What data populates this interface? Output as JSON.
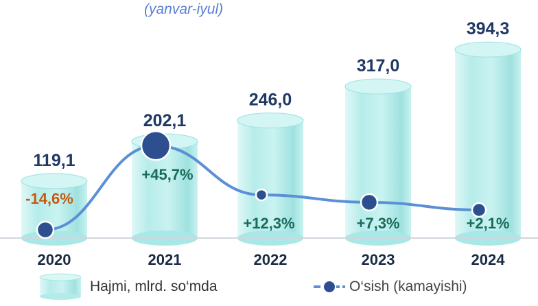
{
  "subtitle": "(yanvar-iyul)",
  "chart_data": {
    "type": "bar",
    "categories": [
      "2020",
      "2021",
      "2022",
      "2023",
      "2024"
    ],
    "series": [
      {
        "name": "Hajmi, mlrd. so‘mda",
        "values": [
          119.1,
          202.1,
          246.0,
          317.0,
          394.3
        ],
        "labels": [
          "119,1",
          "202,1",
          "246,0",
          "317,0",
          "394,3"
        ]
      },
      {
        "name": "O‘sish (kamayishi)",
        "type": "line",
        "values": [
          -14.6,
          45.7,
          12.3,
          7.3,
          2.1
        ],
        "labels": [
          "-14,6%",
          "+45,7%",
          "+12,3%",
          "+7,3%",
          "+2,1%"
        ]
      }
    ],
    "colors": {
      "bar_fill": "#b9f0ee",
      "bar_edge": "#8fdcdc",
      "line": "#5b8fd6",
      "marker": "#2e4f8f",
      "value_label": "#1f3864",
      "growth_positive": "#1a6b5a",
      "growth_negative": "#c55a11"
    }
  }
}
